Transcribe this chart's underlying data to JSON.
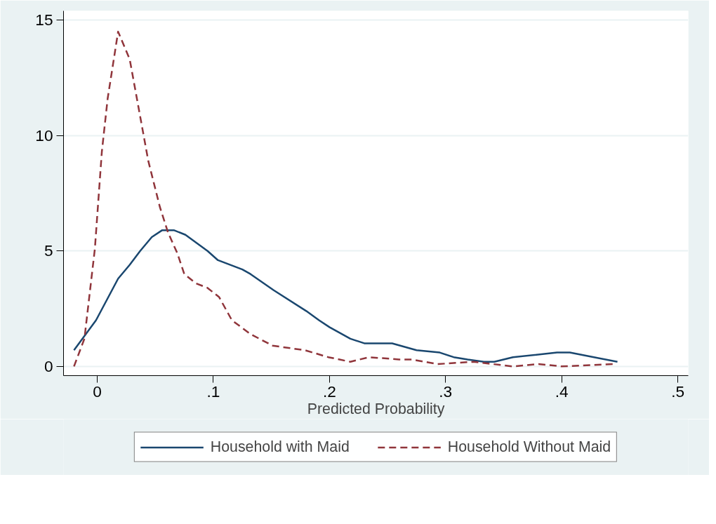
{
  "chart_data": {
    "type": "line",
    "xlabel": "Predicted Probability",
    "xlim": [
      -0.029,
      0.509
    ],
    "ylim": [
      -0.4,
      15.4
    ],
    "xticks": [
      0,
      {
        "value": 0.1,
        "label": ".1"
      },
      {
        "value": 0.2,
        "label": ".2"
      },
      {
        "value": 0.3,
        "label": ".3"
      },
      {
        "value": 0.4,
        "label": ".4"
      },
      {
        "value": 0.5,
        "label": ".5"
      }
    ],
    "yticks": [
      0,
      5,
      10,
      15
    ],
    "grid": "y",
    "legend": "bottom",
    "marker": "none",
    "series": [
      {
        "name": "Household with Maid",
        "color": "#1a476f",
        "line_style": "solid",
        "x": [
          -0.02,
          -0.001,
          0.018,
          0.028,
          0.037,
          0.047,
          0.056,
          0.066,
          0.076,
          0.095,
          0.104,
          0.125,
          0.132,
          0.152,
          0.18,
          0.191,
          0.2,
          0.218,
          0.23,
          0.24,
          0.254,
          0.275,
          0.295,
          0.307,
          0.319,
          0.333,
          0.342,
          0.358,
          0.396,
          0.407,
          0.448
        ],
        "values": [
          0.7,
          2.0,
          3.8,
          4.4,
          5.0,
          5.6,
          5.9,
          5.9,
          5.7,
          5.0,
          4.6,
          4.2,
          4.0,
          3.3,
          2.4,
          2.0,
          1.7,
          1.2,
          1.0,
          1.0,
          1.0,
          0.7,
          0.6,
          0.4,
          0.3,
          0.2,
          0.2,
          0.4,
          0.6,
          0.6,
          0.2
        ]
      },
      {
        "name": "Household Without Maid",
        "color": "#90353b",
        "line_style": "dashed",
        "x": [
          -0.02,
          -0.011,
          -0.002,
          0.004,
          0.009,
          0.018,
          0.028,
          0.036,
          0.044,
          0.054,
          0.061,
          0.069,
          0.075,
          0.085,
          0.095,
          0.105,
          0.116,
          0.132,
          0.151,
          0.165,
          0.179,
          0.199,
          0.218,
          0.234,
          0.26,
          0.271,
          0.293,
          0.324,
          0.358,
          0.38,
          0.4,
          0.444
        ],
        "values": [
          0,
          1.2,
          5.1,
          9.3,
          11.6,
          14.5,
          13.3,
          11.1,
          8.9,
          6.9,
          5.8,
          4.9,
          4.0,
          3.6,
          3.4,
          3.0,
          2.0,
          1.4,
          0.9,
          0.8,
          0.7,
          0.4,
          0.2,
          0.4,
          0.3,
          0.3,
          0.1,
          0.2,
          0.0,
          0.1,
          0,
          0.1
        ]
      }
    ]
  }
}
